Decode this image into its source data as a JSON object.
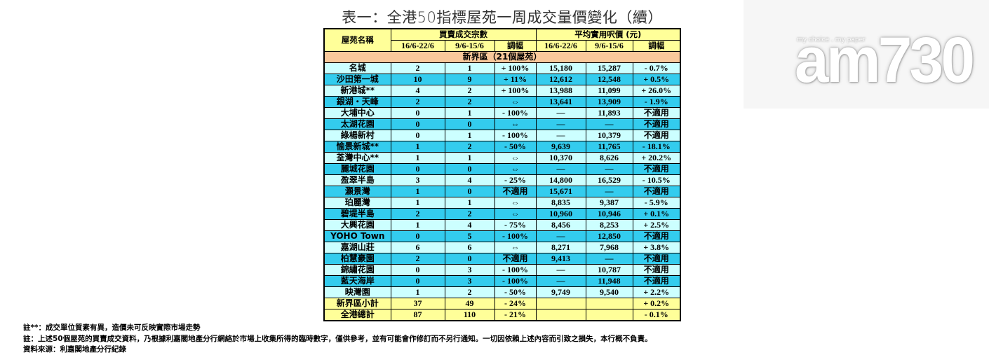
{
  "title": "表一：全港50指標屋苑一周成交量價變化（續）",
  "header": {
    "name_col": "屋苑名稱",
    "group1": "買賣成交宗數",
    "group2": "平均實用呎價 (元)",
    "sub": [
      "16/6-22/6",
      "9/6-15/6",
      "調幅",
      "16/6-22/6",
      "9/6-15/6",
      "調幅"
    ]
  },
  "region": "新界區（21個屋苑）",
  "rows": [
    {
      "name": "名城",
      "cur": "2",
      "prev": "1",
      "chg": "+ 100%",
      "pcur": "15,180",
      "pprev": "15,287",
      "pchg": "- 0.7%",
      "style": "light"
    },
    {
      "name": "沙田第一城",
      "cur": "10",
      "prev": "9",
      "chg": "+ 11%",
      "pcur": "12,612",
      "pprev": "12,548",
      "pchg": "+ 0.5%",
      "style": "dark"
    },
    {
      "name": "新港城**",
      "cur": "4",
      "prev": "2",
      "chg": "+ 100%",
      "pcur": "13,988",
      "pprev": "11,099",
      "pchg": "+ 26.0%",
      "style": "light"
    },
    {
      "name": "銀湖・天峰",
      "cur": "2",
      "prev": "2",
      "chg": "⇔",
      "pcur": "13,641",
      "pprev": "13,909",
      "pchg": "- 1.9%",
      "style": "dark"
    },
    {
      "name": "大埔中心",
      "cur": "0",
      "prev": "1",
      "chg": "- 100%",
      "pcur": "—",
      "pprev": "11,893",
      "pchg": "不適用",
      "style": "light"
    },
    {
      "name": "太湖花園",
      "cur": "0",
      "prev": "0",
      "chg": "⇔",
      "pcur": "—",
      "pprev": "—",
      "pchg": "不適用",
      "style": "dark"
    },
    {
      "name": "綠楊新村",
      "cur": "0",
      "prev": "1",
      "chg": "- 100%",
      "pcur": "—",
      "pprev": "10,379",
      "pchg": "不適用",
      "style": "light"
    },
    {
      "name": "愉景新城**",
      "cur": "1",
      "prev": "2",
      "chg": "- 50%",
      "pcur": "9,639",
      "pprev": "11,765",
      "pchg": "- 18.1%",
      "style": "dark"
    },
    {
      "name": "荃灣中心**",
      "cur": "1",
      "prev": "1",
      "chg": "⇔",
      "pcur": "10,370",
      "pprev": "8,626",
      "pchg": "+ 20.2%",
      "style": "light"
    },
    {
      "name": "麗城花園",
      "cur": "0",
      "prev": "0",
      "chg": "⇔",
      "pcur": "—",
      "pprev": "—",
      "pchg": "不適用",
      "style": "dark"
    },
    {
      "name": "盈翠半島",
      "cur": "3",
      "prev": "4",
      "chg": "- 25%",
      "pcur": "14,800",
      "pprev": "16,529",
      "pchg": "- 10.5%",
      "style": "light"
    },
    {
      "name": "灝景灣",
      "cur": "1",
      "prev": "0",
      "chg": "不適用",
      "pcur": "15,671",
      "pprev": "—",
      "pchg": "不適用",
      "style": "dark"
    },
    {
      "name": "珀麗灣",
      "cur": "1",
      "prev": "1",
      "chg": "⇔",
      "pcur": "8,835",
      "pprev": "9,387",
      "pchg": "- 5.9%",
      "style": "light"
    },
    {
      "name": "碧堤半島",
      "cur": "2",
      "prev": "2",
      "chg": "⇔",
      "pcur": "10,960",
      "pprev": "10,946",
      "pchg": "+ 0.1%",
      "style": "dark"
    },
    {
      "name": "大興花園",
      "cur": "1",
      "prev": "4",
      "chg": "- 75%",
      "pcur": "8,456",
      "pprev": "8,253",
      "pchg": "+ 2.5%",
      "style": "light"
    },
    {
      "name": "YOHO Town",
      "cur": "0",
      "prev": "5",
      "chg": "- 100%",
      "pcur": "—",
      "pprev": "12,850",
      "pchg": "不適用",
      "style": "dark"
    },
    {
      "name": "嘉湖山莊",
      "cur": "6",
      "prev": "6",
      "chg": "⇔",
      "pcur": "8,271",
      "pprev": "7,968",
      "pchg": "+ 3.8%",
      "style": "light"
    },
    {
      "name": "柏慧豪園",
      "cur": "2",
      "prev": "0",
      "chg": "不適用",
      "pcur": "9,413",
      "pprev": "—",
      "pchg": "不適用",
      "style": "dark"
    },
    {
      "name": "錦繡花園",
      "cur": "0",
      "prev": "3",
      "chg": "- 100%",
      "pcur": "—",
      "pprev": "10,787",
      "pchg": "不適用",
      "style": "light"
    },
    {
      "name": "藍天海岸",
      "cur": "0",
      "prev": "3",
      "chg": "- 100%",
      "pcur": "—",
      "pprev": "11,948",
      "pchg": "不適用",
      "style": "dark"
    },
    {
      "name": "映灣園",
      "cur": "1",
      "prev": "2",
      "chg": "- 50%",
      "pcur": "9,749",
      "pprev": "9,540",
      "pchg": "+ 2.2%",
      "style": "light"
    }
  ],
  "summary": [
    {
      "name": "新界區小計",
      "cur": "37",
      "prev": "49",
      "chg": "- 24%",
      "pcur": "",
      "pprev": "",
      "pchg": "+ 0.2%"
    },
    {
      "name": "全港總計",
      "cur": "87",
      "prev": "110",
      "chg": "- 21%",
      "pcur": "",
      "pprev": "",
      "pchg": "- 0.1%"
    }
  ],
  "notes": [
    "註**：成交單位質素有異，造價未可反映實際市場走勢",
    "註：上述50個屋苑的買賣成交資料，乃根據利嘉閣地產分行網絡於市場上收集所得的臨時數字，僅供參考，並有可能會作修訂而不另行通知。一切因依賴上述內容而引致之損失，本行概不負責。",
    "資料來源：利嘉閣地產分行紀錄"
  ],
  "logo": {
    "tagline": "my choice . my paper",
    "text": "am730"
  }
}
